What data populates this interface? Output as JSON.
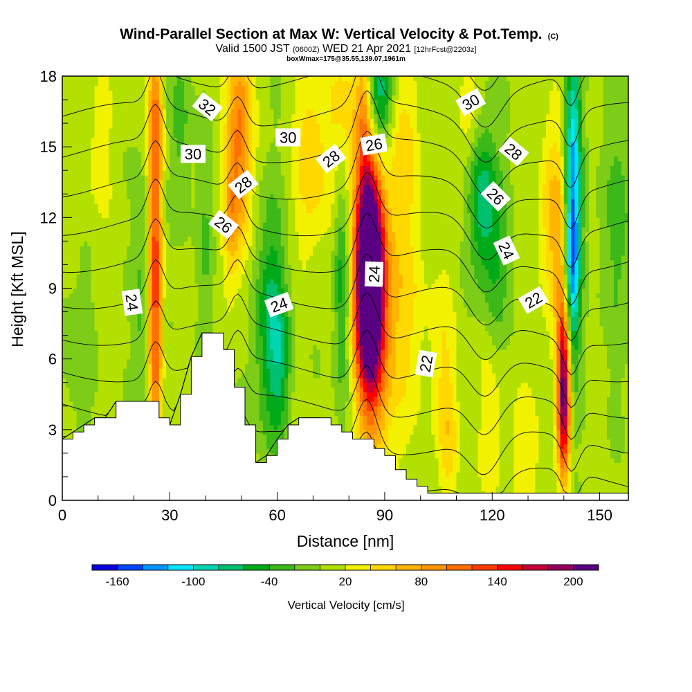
{
  "chart_data": {
    "type": "heatmap",
    "title": "Wind-Parallel Section at Max W: Vertical Velocity & Pot.Temp.",
    "title_suffix": "(C)",
    "subtitle_parts": [
      "Valid 1500 JST ",
      "(0600Z)",
      " WED 21 Apr 2021 ",
      "[12hrFcst@2203z]"
    ],
    "subtitle2": "boxWmax=175@35.55,139.07,1961m",
    "xlabel": "Distance [nm]",
    "ylabel": "Height [Kft MSL]",
    "xlim": [
      0,
      158
    ],
    "ylim": [
      0,
      18
    ],
    "x_ticks": [
      0,
      30,
      60,
      90,
      120,
      150
    ],
    "x_tick_labels": [
      "0",
      "30",
      "60",
      "90",
      "120",
      "150"
    ],
    "y_ticks": [
      0,
      3,
      6,
      9,
      12,
      15,
      18
    ],
    "y_tick_labels": [
      "0",
      "3",
      "6",
      "9",
      "12",
      "15",
      "18"
    ],
    "colorbar": {
      "label": "Vertical Velocity [cm/s]",
      "tick_values": [
        -160,
        -100,
        -40,
        20,
        80,
        140,
        200
      ],
      "tick_labels": [
        "-160",
        "-100",
        "-40",
        "20",
        "80",
        "140",
        "200"
      ],
      "min": -180,
      "max": 220,
      "colors": [
        "#0a00dd",
        "#0046ff",
        "#0096ff",
        "#00e6ff",
        "#00d6b0",
        "#00c070",
        "#00aa18",
        "#3cb818",
        "#7ccc18",
        "#b2e000",
        "#f2f200",
        "#ffd800",
        "#ffb400",
        "#ff9600",
        "#ff7000",
        "#ff3c00",
        "#ff0000",
        "#c8003a",
        "#94005a",
        "#5a0082"
      ]
    },
    "terrain_profile": {
      "x": [
        0,
        3,
        6,
        9,
        12,
        15,
        18,
        21,
        24,
        27,
        30,
        33,
        36,
        39,
        42,
        45,
        48,
        51,
        54,
        57,
        60,
        63,
        66,
        69,
        72,
        75,
        78,
        81,
        84,
        87,
        90,
        93,
        96,
        99,
        102,
        105,
        108,
        111,
        114,
        117,
        120,
        123,
        126,
        129,
        132,
        135,
        138,
        141,
        144,
        147,
        150,
        153,
        156,
        158
      ],
      "y": [
        2.6,
        2.9,
        3.2,
        3.5,
        3.5,
        4.2,
        4.2,
        4.2,
        4.2,
        3.5,
        3.2,
        4.5,
        6.1,
        7.1,
        7.1,
        6.4,
        4.8,
        3.2,
        1.6,
        1.9,
        2.6,
        3.2,
        3.5,
        3.5,
        3.5,
        3.2,
        2.9,
        2.6,
        2.6,
        2.2,
        1.9,
        1.3,
        0.9,
        0.6,
        0.3,
        0.3,
        0.3,
        0.3,
        0.3,
        0.3,
        0.3,
        0.3,
        0.3,
        0.3,
        0.3,
        0.3,
        0.3,
        0.3,
        0.3,
        0.3,
        0.3,
        0.3,
        0.3,
        0.3
      ]
    },
    "velocity_features": [
      {
        "x": 85.5,
        "z": 9.5,
        "sx": 2.6,
        "sz": 3.4,
        "w": 300
      },
      {
        "x": 88.5,
        "z": 8.0,
        "sx": 4.5,
        "sz": 4.5,
        "w": 80
      },
      {
        "x": 97.0,
        "z": 9.0,
        "sx": 3.5,
        "sz": 4.0,
        "w": 25
      },
      {
        "x": 106.0,
        "z": 6.0,
        "sx": 2.8,
        "sz": 3.0,
        "w": 30
      },
      {
        "x": 26.0,
        "z": 9.0,
        "sx": 1.3,
        "sz": 5.5,
        "w": 130
      },
      {
        "x": 26.0,
        "z": 16.5,
        "sx": 1.5,
        "sz": 2.0,
        "w": 60
      },
      {
        "x": 49.5,
        "z": 15.5,
        "sx": 2.5,
        "sz": 3.5,
        "w": 100
      },
      {
        "x": 47.0,
        "z": 12.0,
        "sx": 1.5,
        "sz": 2.0,
        "w": 50
      },
      {
        "x": 33.0,
        "z": 16.0,
        "sx": 2.0,
        "sz": 3.0,
        "w": -35
      },
      {
        "x": 22.0,
        "z": 8.0,
        "sx": 1.6,
        "sz": 4.0,
        "w": -30
      },
      {
        "x": 40.0,
        "z": 11.0,
        "sx": 1.5,
        "sz": 3.0,
        "w": -25
      },
      {
        "x": 58.0,
        "z": 7.5,
        "sx": 3.0,
        "sz": 3.5,
        "w": -70
      },
      {
        "x": 61.0,
        "z": 6.0,
        "sx": 2.0,
        "sz": 2.0,
        "w": -40
      },
      {
        "x": 78.0,
        "z": 9.0,
        "sx": 1.5,
        "sz": 3.5,
        "w": -60
      },
      {
        "x": 69.5,
        "z": 14.5,
        "sx": 3.5,
        "sz": 3.0,
        "w": 50
      },
      {
        "x": 79.0,
        "z": 16.5,
        "sx": 3.5,
        "sz": 2.5,
        "w": 40
      },
      {
        "x": 84.0,
        "z": 16.5,
        "sx": 1.5,
        "sz": 2.5,
        "w": 50
      },
      {
        "x": 88.5,
        "z": 17.0,
        "sx": 2.5,
        "sz": 2.0,
        "w": -90
      },
      {
        "x": 95.0,
        "z": 15.5,
        "sx": 3.0,
        "sz": 2.0,
        "w": 35
      },
      {
        "x": 117.0,
        "z": 13.0,
        "sx": 2.5,
        "sz": 2.5,
        "w": -75
      },
      {
        "x": 121.0,
        "z": 10.0,
        "sx": 2.5,
        "sz": 3.0,
        "w": -45
      },
      {
        "x": 114.0,
        "z": 16.5,
        "sx": 2.5,
        "sz": 2.0,
        "w": 35
      },
      {
        "x": 136.5,
        "z": 12.0,
        "sx": 2.5,
        "sz": 3.0,
        "w": 55
      },
      {
        "x": 140.0,
        "z": 4.5,
        "sx": 1.2,
        "sz": 2.5,
        "w": 190
      },
      {
        "x": 139.5,
        "z": 9.0,
        "sx": 1.6,
        "sz": 4.0,
        "w": 50
      },
      {
        "x": 142.5,
        "z": 13.0,
        "sx": 1.6,
        "sz": 4.5,
        "w": -140
      },
      {
        "x": 142.0,
        "z": 9.5,
        "sx": 1.5,
        "sz": 2.0,
        "w": -50
      },
      {
        "x": 155.0,
        "z": 12.0,
        "sx": 3.5,
        "sz": 4.0,
        "w": -30
      },
      {
        "x": 120.0,
        "z": 4.0,
        "sx": 3.0,
        "sz": 3.0,
        "w": 30
      },
      {
        "x": 130.0,
        "z": 2.0,
        "sx": 3.0,
        "sz": 2.0,
        "w": 30
      },
      {
        "x": 108.0,
        "z": 2.5,
        "sx": 2.0,
        "sz": 2.0,
        "w": 35
      },
      {
        "x": 4.0,
        "z": 6.5,
        "sx": 3.0,
        "sz": 2.5,
        "w": -20
      },
      {
        "x": 10.0,
        "z": 15.0,
        "sx": 3.0,
        "sz": 2.5,
        "w": 25
      }
    ],
    "theta_levels": [
      20,
      21,
      22,
      23,
      24,
      25,
      26,
      27,
      28,
      29,
      30,
      31,
      32,
      33,
      34,
      35,
      36
    ],
    "theta_labels": [
      {
        "text": "32",
        "x": 40.5,
        "y": 16.7,
        "rotate": 38
      },
      {
        "text": "30",
        "x": 36.5,
        "y": 14.7,
        "rotate": 0
      },
      {
        "text": "30",
        "x": 63.0,
        "y": 15.4,
        "rotate": 0
      },
      {
        "text": "28",
        "x": 50.5,
        "y": 13.4,
        "rotate": -38
      },
      {
        "text": "26",
        "x": 45.0,
        "y": 11.7,
        "rotate": 38
      },
      {
        "text": "24",
        "x": 19.5,
        "y": 8.4,
        "rotate": 82
      },
      {
        "text": "24",
        "x": 60.5,
        "y": 8.3,
        "rotate": -20
      },
      {
        "text": "28",
        "x": 75.0,
        "y": 14.5,
        "rotate": -38
      },
      {
        "text": "26",
        "x": 87.0,
        "y": 15.1,
        "rotate": -10
      },
      {
        "text": "24",
        "x": 87.0,
        "y": 9.6,
        "rotate": -88
      },
      {
        "text": "22",
        "x": 101.5,
        "y": 5.8,
        "rotate": -80
      },
      {
        "text": "30",
        "x": 114.0,
        "y": 16.9,
        "rotate": -30
      },
      {
        "text": "28",
        "x": 126.0,
        "y": 14.8,
        "rotate": 40
      },
      {
        "text": "26",
        "x": 121.0,
        "y": 12.9,
        "rotate": 45
      },
      {
        "text": "24",
        "x": 124.0,
        "y": 10.6,
        "rotate": 65
      },
      {
        "text": "22",
        "x": 131.5,
        "y": 8.5,
        "rotate": -30
      }
    ]
  }
}
